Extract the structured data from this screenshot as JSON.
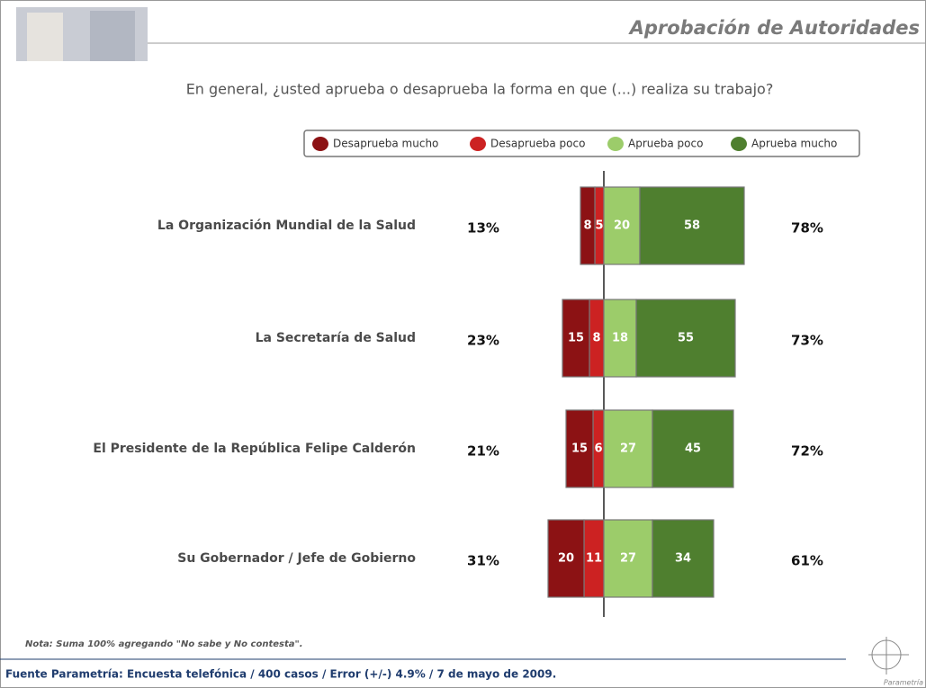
{
  "header": {
    "title": "Aprobación de Autoridades"
  },
  "chart_data": {
    "type": "diverging_bar",
    "title": "En general, ¿usted aprueba o desaprueba la forma en que (...) realiza su trabajo?",
    "categories": [
      "La Organización Mundial de la Salud",
      "La Secretaría de Salud",
      "El Presidente de la República Felipe Calderón",
      "Su Gobernador / Jefe de Gobierno"
    ],
    "series": [
      {
        "name": "Desaprueba mucho",
        "color": "#8c1214",
        "side": "left",
        "values": [
          8,
          15,
          15,
          20
        ]
      },
      {
        "name": "Desaprueba poco",
        "color": "#cc2222",
        "side": "left",
        "values": [
          5,
          8,
          6,
          11
        ]
      },
      {
        "name": "Aprueba poco",
        "color": "#9ccc6a",
        "side": "right",
        "values": [
          20,
          18,
          27,
          27
        ]
      },
      {
        "name": "Aprueba mucho",
        "color": "#4f7f2f",
        "side": "right",
        "values": [
          58,
          55,
          45,
          34
        ]
      }
    ],
    "disapprove_totals": {
      "values": [
        13,
        23,
        21,
        31
      ],
      "value_labels": [
        "13%",
        "23%",
        "21%",
        "31%"
      ]
    },
    "approve_totals": {
      "values": [
        78,
        73,
        72,
        61
      ],
      "value_labels": [
        "78%",
        "73%",
        "72%",
        "61%"
      ]
    }
  },
  "note": "Nota: Suma 100%  agregando  \"No sabe y No contesta\".",
  "source": "Fuente Parametría: Encuesta telefónica / 400 casos / Error (+/-) 4.9% / 7 de mayo de 2009.",
  "logo": "Parametría"
}
